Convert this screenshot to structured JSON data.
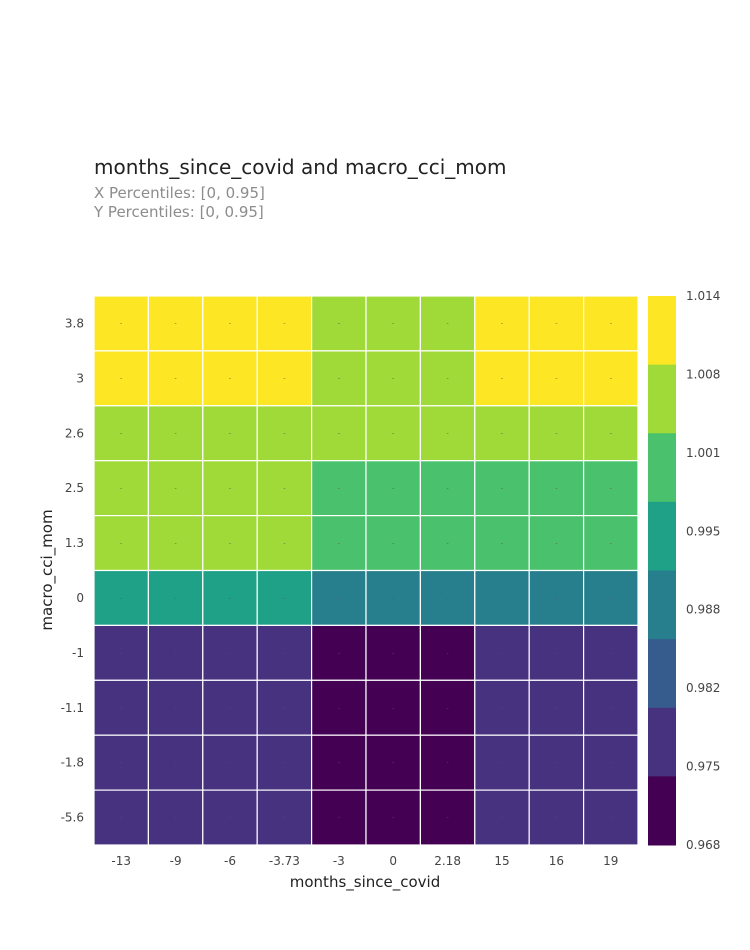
{
  "chart_data": {
    "type": "heatmap",
    "title": "months_since_covid and macro_cci_mom",
    "subtitle_lines": [
      "X Percentiles: [0, 0.95]",
      "Y Percentiles: [0, 0.95]"
    ],
    "xlabel": "months_since_covid",
    "ylabel": "macro_cci_mom",
    "x_categories": [
      "-13",
      "-9",
      "-6",
      "-3.73",
      "-3",
      "0",
      "2.18",
      "15",
      "16",
      "19"
    ],
    "y_categories": [
      "3.8",
      "3",
      "2.6",
      "2.5",
      "1.3",
      "0",
      "-1",
      "-1.1",
      "-1.8",
      "-5.6"
    ],
    "values": [
      [
        1.012,
        1.012,
        1.012,
        1.012,
        1.006,
        1.006,
        1.006,
        1.01,
        1.01,
        1.01
      ],
      [
        1.012,
        1.012,
        1.012,
        1.012,
        1.006,
        1.006,
        1.006,
        1.01,
        1.01,
        1.01
      ],
      [
        1.006,
        1.006,
        1.006,
        1.006,
        1.003,
        1.003,
        1.003,
        1.005,
        1.005,
        1.005
      ],
      [
        1.003,
        1.003,
        1.003,
        1.003,
        0.997,
        0.997,
        0.997,
        1.002,
        1.002,
        1.002
      ],
      [
        1.003,
        1.003,
        1.003,
        1.003,
        0.997,
        0.997,
        0.997,
        1.002,
        1.002,
        1.002
      ],
      [
        0.991,
        0.991,
        0.991,
        0.991,
        0.986,
        0.986,
        0.986,
        0.99,
        0.99,
        0.99
      ],
      [
        0.979,
        0.979,
        0.979,
        0.979,
        0.973,
        0.973,
        0.973,
        0.978,
        0.978,
        0.978
      ],
      [
        0.979,
        0.979,
        0.979,
        0.979,
        0.973,
        0.973,
        0.973,
        0.978,
        0.978,
        0.978
      ],
      [
        0.979,
        0.979,
        0.979,
        0.979,
        0.973,
        0.973,
        0.973,
        0.978,
        0.978,
        0.978
      ],
      [
        0.976,
        0.976,
        0.976,
        0.976,
        0.969,
        0.969,
        0.969,
        0.974,
        0.974,
        0.974
      ]
    ],
    "colorbar": {
      "ticks": [
        "1.014",
        "1.008",
        "1.001",
        "0.995",
        "0.988",
        "0.982",
        "0.975",
        "0.968"
      ],
      "min": 0.968,
      "max": 1.014,
      "colors": [
        "#440154",
        "#46327e",
        "#365c8d",
        "#277f8e",
        "#1fa187",
        "#4ac16d",
        "#a0da39",
        "#fde725"
      ]
    },
    "colorscale": "viridis",
    "cell_label": "-",
    "grid": false
  }
}
